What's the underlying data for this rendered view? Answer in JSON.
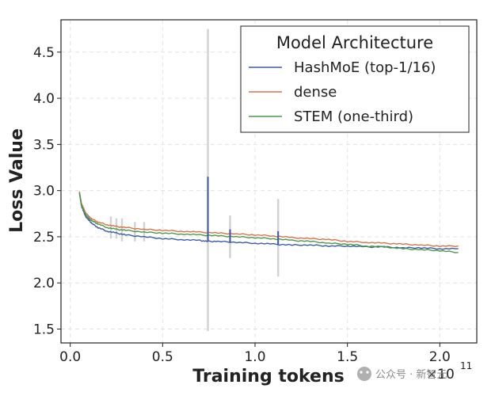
{
  "chart_data": {
    "type": "line",
    "title": "",
    "xlabel": "Training tokens",
    "ylabel": "Loss Value",
    "x_offset_text": "×10",
    "x_offset_exponent": "11",
    "xlim": [
      -0.05,
      2.2
    ],
    "ylim": [
      1.35,
      4.85
    ],
    "x_ticks": [
      0.0,
      0.5,
      1.0,
      1.5,
      2.0
    ],
    "x_tick_labels": [
      "0.0",
      "0.5",
      "1.0",
      "1.5",
      "2.0"
    ],
    "y_ticks": [
      1.5,
      2.0,
      2.5,
      3.0,
      3.5,
      4.0,
      4.5
    ],
    "y_tick_labels": [
      "1.5",
      "2.0",
      "2.5",
      "3.0",
      "3.5",
      "4.0",
      "4.5"
    ],
    "grid": true,
    "legend": {
      "title": "Model Architecture",
      "position": "top-right"
    },
    "series": [
      {
        "name": "HashMoE (top-1/16)",
        "color": "#3b5ba8",
        "x": [
          0.05,
          0.06,
          0.08,
          0.1,
          0.12,
          0.15,
          0.2,
          0.25,
          0.3,
          0.4,
          0.5,
          0.6,
          0.7,
          0.74,
          0.8,
          0.9,
          1.0,
          1.1,
          1.2,
          1.3,
          1.4,
          1.5,
          1.6,
          1.7,
          1.8,
          1.9,
          2.0,
          2.1
        ],
        "y": [
          2.97,
          2.84,
          2.73,
          2.68,
          2.64,
          2.6,
          2.56,
          2.54,
          2.52,
          2.5,
          2.48,
          2.47,
          2.46,
          2.45,
          2.45,
          2.44,
          2.43,
          2.42,
          2.41,
          2.41,
          2.4,
          2.4,
          2.39,
          2.39,
          2.38,
          2.38,
          2.37,
          2.37
        ]
      },
      {
        "name": "dense",
        "color": "#d9734a",
        "x": [
          0.05,
          0.06,
          0.08,
          0.1,
          0.12,
          0.15,
          0.2,
          0.25,
          0.3,
          0.4,
          0.5,
          0.6,
          0.7,
          0.8,
          0.9,
          1.0,
          1.1,
          1.2,
          1.3,
          1.4,
          1.5,
          1.6,
          1.7,
          1.8,
          1.9,
          2.0,
          2.1
        ],
        "y": [
          2.99,
          2.87,
          2.77,
          2.72,
          2.69,
          2.66,
          2.63,
          2.61,
          2.6,
          2.58,
          2.57,
          2.56,
          2.55,
          2.54,
          2.53,
          2.52,
          2.51,
          2.49,
          2.48,
          2.47,
          2.45,
          2.44,
          2.43,
          2.42,
          2.41,
          2.4,
          2.4
        ]
      },
      {
        "name": "STEM (one-third)",
        "color": "#4a9a4a",
        "x": [
          0.05,
          0.06,
          0.08,
          0.1,
          0.12,
          0.15,
          0.2,
          0.25,
          0.3,
          0.4,
          0.5,
          0.6,
          0.7,
          0.8,
          0.9,
          1.0,
          1.1,
          1.2,
          1.3,
          1.4,
          1.5,
          1.6,
          1.7,
          1.8,
          1.9,
          2.0,
          2.1
        ],
        "y": [
          2.98,
          2.85,
          2.75,
          2.7,
          2.67,
          2.64,
          2.6,
          2.58,
          2.57,
          2.55,
          2.54,
          2.53,
          2.52,
          2.51,
          2.5,
          2.49,
          2.48,
          2.46,
          2.45,
          2.43,
          2.42,
          2.4,
          2.39,
          2.37,
          2.36,
          2.35,
          2.33
        ]
      }
    ],
    "spikes": [
      {
        "series": "HashMoE (top-1/16)",
        "x": 0.745,
        "y_high": 3.15
      },
      {
        "series": "HashMoE (top-1/16)",
        "x": 0.865,
        "y_high": 2.58
      },
      {
        "series": "HashMoE (top-1/16)",
        "x": 1.125,
        "y_high": 2.56
      }
    ],
    "error_bars": [
      {
        "x": 0.22,
        "low": 2.48,
        "high": 2.72
      },
      {
        "x": 0.25,
        "low": 2.48,
        "high": 2.7
      },
      {
        "x": 0.28,
        "low": 2.45,
        "high": 2.7
      },
      {
        "x": 0.35,
        "low": 2.45,
        "high": 2.66
      },
      {
        "x": 0.4,
        "low": 2.45,
        "high": 2.66
      },
      {
        "x": 0.745,
        "low": 1.48,
        "high": 4.75
      },
      {
        "x": 0.865,
        "low": 2.27,
        "high": 2.73
      },
      {
        "x": 1.125,
        "low": 2.07,
        "high": 2.91
      }
    ],
    "error_bar_color": "#d3d3d3"
  },
  "watermark": {
    "text": "公众号 · 新智元"
  }
}
